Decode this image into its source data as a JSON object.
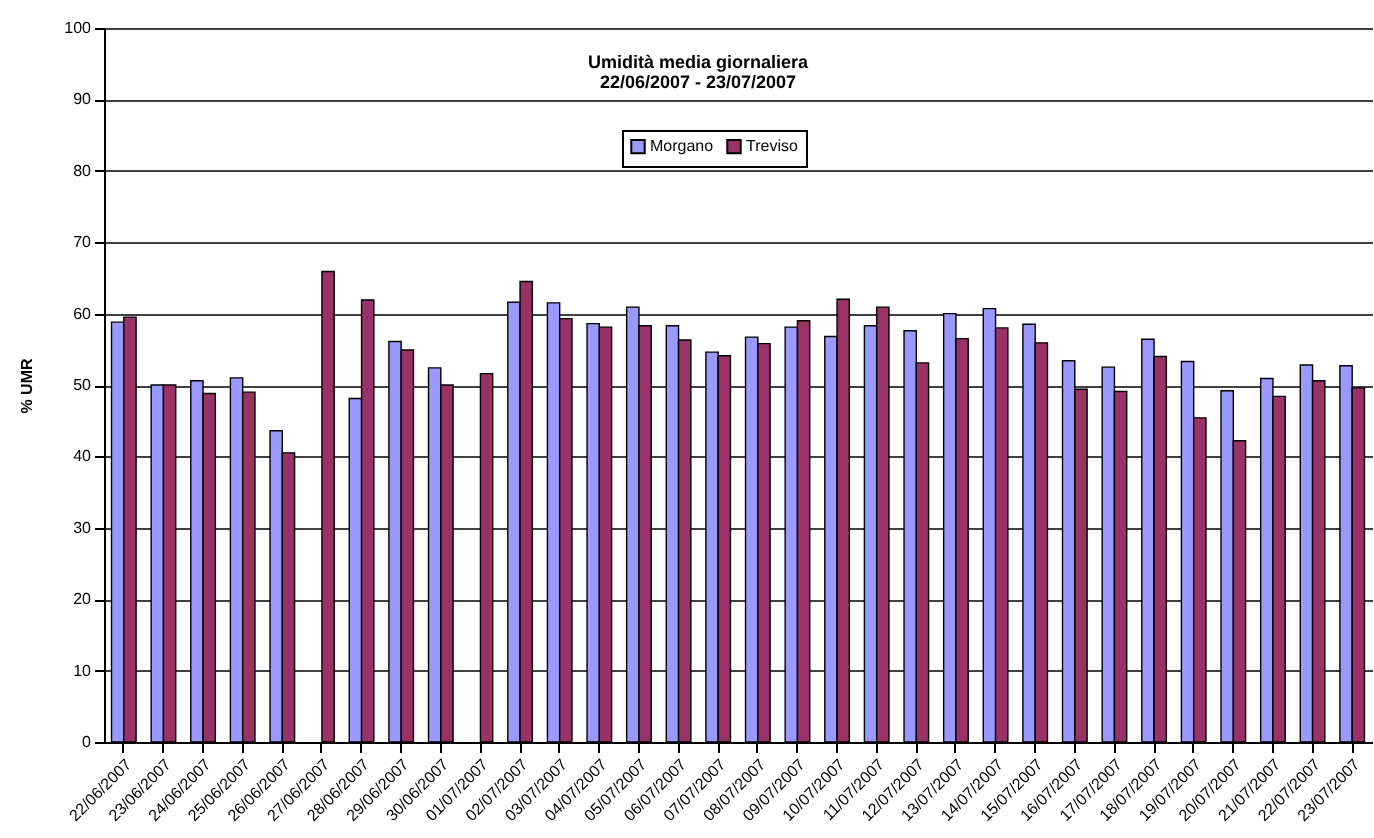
{
  "chart_data": {
    "type": "bar",
    "title": "Umidità media giornaliera",
    "subtitle": "22/06/2007 - 23/07/2007",
    "ylabel": "% UMR",
    "categories": [
      "22/06/2007",
      "23/06/2007",
      "24/06/2007",
      "25/06/2007",
      "26/06/2007",
      "27/06/2007",
      "28/06/2007",
      "29/06/2007",
      "30/06/2007",
      "01/07/2007",
      "02/07/2007",
      "03/07/2007",
      "04/07/2007",
      "05/07/2007",
      "06/07/2007",
      "07/07/2007",
      "08/07/2007",
      "09/07/2007",
      "10/07/2007",
      "11/07/2007",
      "12/07/2007",
      "13/07/2007",
      "14/07/2007",
      "15/07/2007",
      "16/07/2007",
      "17/07/2007",
      "18/07/2007",
      "19/07/2007",
      "20/07/2007",
      "21/07/2007",
      "22/07/2007",
      "23/07/2007"
    ],
    "series": [
      {
        "name": "Morgano",
        "color": "#9999ff",
        "values": [
          58.8,
          50.0,
          50.6,
          51.0,
          43.6,
          null,
          48.1,
          56.1,
          52.4,
          null,
          61.6,
          61.5,
          58.6,
          60.9,
          58.3,
          54.6,
          56.7,
          58.1,
          56.8,
          58.3,
          57.6,
          60.0,
          60.7,
          58.5,
          53.4,
          52.5,
          56.4,
          53.3,
          49.2,
          50.9,
          52.8,
          52.7
        ]
      },
      {
        "name": "Treviso",
        "color": "#993366",
        "values": [
          59.5,
          50.0,
          48.8,
          49.0,
          40.5,
          65.9,
          61.9,
          54.9,
          50.0,
          51.6,
          64.5,
          59.3,
          58.1,
          58.3,
          56.3,
          54.1,
          55.8,
          59.0,
          62.0,
          60.9,
          53.1,
          56.5,
          58.0,
          55.9,
          49.4,
          49.1,
          54.0,
          45.4,
          42.2,
          48.4,
          50.6,
          49.6
        ]
      }
    ],
    "ylim": [
      0,
      100
    ],
    "yticks": [
      0,
      10,
      20,
      30,
      40,
      50,
      60,
      70,
      80,
      90,
      100
    ],
    "grid": "y",
    "legend": "top"
  }
}
